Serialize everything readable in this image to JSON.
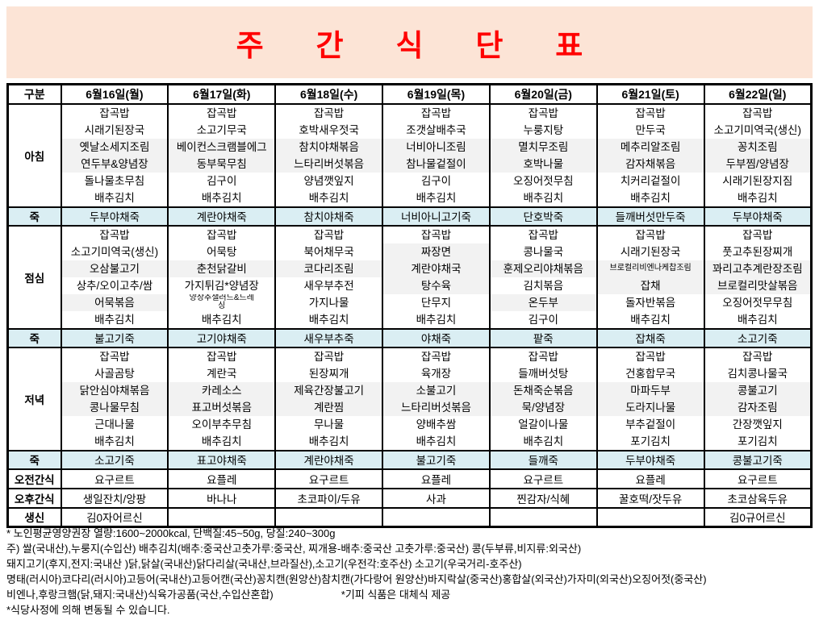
{
  "title": "주 간 식 단 표",
  "colors": {
    "title_red": "#FF0000",
    "banner_peach": "#FCE4D6",
    "porridge_blue": "#DAEEF3",
    "stripe_gray": "#F2F2F2",
    "border_black": "#000000"
  },
  "table": {
    "corner_label": "구분",
    "days": [
      "6월16일(월)",
      "6월17일(화)",
      "6월18일(수)",
      "6월19일(목)",
      "6월20일(금)",
      "6월21일(토)",
      "6월22일(일)"
    ],
    "sections": [
      {
        "key": "breakfast",
        "label": "아침",
        "type": "meal",
        "cells": [
          {
            "items": [
              "잡곡밥",
              "시래기된장국",
              "옛날소세지조림",
              "연두부&양념장",
              "돌나물초무침",
              "배추김치"
            ],
            "shaded": [
              2,
              3
            ]
          },
          {
            "items": [
              "잡곡밥",
              "소고기무국",
              "베이컨스크램블에그",
              "동부묵무침",
              "김구이",
              "배추김치"
            ],
            "shaded": [
              2,
              3
            ]
          },
          {
            "items": [
              "잡곡밥",
              "호박새우젓국",
              "참치야채볶음",
              "느타리버섯볶음",
              "양념깻잎지",
              "배추김치"
            ],
            "shaded": [
              2,
              3
            ]
          },
          {
            "items": [
              "잡곡밥",
              "조갯살배추국",
              "너비아니조림",
              "참나물겉절이",
              "김구이",
              "배추김치"
            ],
            "shaded": [
              2,
              3
            ]
          },
          {
            "items": [
              "잡곡밥",
              "누룽지탕",
              "멸치무조림",
              "호박나물",
              "오징어젓무침",
              "배추김치"
            ],
            "shaded": [
              2,
              3
            ]
          },
          {
            "items": [
              "잡곡밥",
              "만두국",
              "메추리알조림",
              "감자채볶음",
              "치커리겉절이",
              "배추김치"
            ],
            "shaded": [
              2,
              3
            ]
          },
          {
            "items": [
              "잡곡밥",
              "소고기미역국(생신)",
              "꽁치조림",
              "두부찜/양념장",
              "시래기된장지짐",
              "배추김치"
            ],
            "shaded": [
              2,
              3
            ]
          }
        ]
      },
      {
        "key": "porridge-morning",
        "label": "죽",
        "type": "porridge",
        "cells": [
          "두부야채죽",
          "계란야채죽",
          "참치야채죽",
          "너비아니고기죽",
          "단호박죽",
          "들깨버섯만두죽",
          "두부야채죽"
        ]
      },
      {
        "key": "lunch",
        "label": "점심",
        "type": "meal",
        "cells": [
          {
            "items": [
              "잡곡밥",
              "소고기미역국(생신)",
              "오삼불고기",
              "상추/오이고추/쌈",
              "어묵볶음",
              "배추김치"
            ],
            "shaded": [
              2,
              4
            ]
          },
          {
            "items": [
              "잡곡밥",
              "어묵탕",
              "춘천닭갈비",
              "가지튀김*양념장",
              "양상추샐러드&드레\n싱",
              "배추김치"
            ],
            "shaded": [
              2
            ],
            "small": [
              4
            ]
          },
          {
            "items": [
              "잡곡밥",
              "북어채무국",
              "코다리조림",
              "새우부추전",
              "가지나물",
              "배추김치"
            ],
            "shaded": [
              2
            ]
          },
          {
            "items": [
              "잡곡밥",
              "짜장면",
              "계란야채국",
              "탕수육",
              "단무지",
              "배추김치"
            ],
            "shaded": [
              1,
              2,
              3
            ]
          },
          {
            "items": [
              "잡곡밥",
              "콩나물국",
              "훈제오리야채볶음",
              "김치볶음",
              "온두부",
              "김구이"
            ],
            "shaded": [
              2,
              4
            ]
          },
          {
            "items": [
              "잡곡밥",
              "시래기된장국",
              "브로컬리비엔나케찹조림",
              "잡채",
              "돌자반볶음",
              "배추김치"
            ],
            "shaded": [
              2,
              3
            ],
            "small": [
              2
            ]
          },
          {
            "items": [
              "잡곡밥",
              "풋고추된장찌개",
              "꽈리고추계란장조림",
              "브로컬리맛살볶음",
              "오징어젓무무침",
              "배추김치"
            ],
            "shaded": [
              2,
              3
            ]
          }
        ]
      },
      {
        "key": "porridge-noon",
        "label": "죽",
        "type": "porridge",
        "cells": [
          "불고기죽",
          "고기야채죽",
          "새우부추죽",
          "야채죽",
          "팥죽",
          "잡채죽",
          "소고기죽"
        ]
      },
      {
        "key": "dinner",
        "label": "저녁",
        "type": "meal",
        "cells": [
          {
            "items": [
              "잡곡밥",
              "사골곰탕",
              "닭안심야채볶음",
              "콩나물무침",
              "근대나물",
              "배추김치"
            ],
            "shaded": [
              2,
              3
            ]
          },
          {
            "items": [
              "잡곡밥",
              "계란국",
              "카레소스",
              "표고버섯볶음",
              "오이부추무침",
              "배추김치"
            ],
            "shaded": [
              2,
              3
            ]
          },
          {
            "items": [
              "잡곡밥",
              "된장찌개",
              "제육간장불고기",
              "계란찜",
              "무나물",
              "배추김치"
            ],
            "shaded": [
              2,
              3
            ]
          },
          {
            "items": [
              "잡곡밥",
              "육개장",
              "소불고기",
              "느타리버섯볶음",
              "양배추쌈",
              "배추김치"
            ],
            "shaded": [
              2,
              3
            ]
          },
          {
            "items": [
              "잡곡밥",
              "들깨버섯탕",
              "돈채죽순볶음",
              "묵/양념장",
              "얼갈이나물",
              "배추김치"
            ],
            "shaded": [
              2,
              3
            ]
          },
          {
            "items": [
              "잡곡밥",
              "건홍합무국",
              "마파두부",
              "도라지나물",
              "부추겉절이",
              "포기김치"
            ],
            "shaded": [
              2,
              3
            ]
          },
          {
            "items": [
              "잡곡밥",
              "김치콩나물국",
              "콩불고기",
              "감자조림",
              "간장깻잎지",
              "포기김치"
            ],
            "shaded": [
              2,
              3
            ]
          }
        ]
      },
      {
        "key": "porridge-evening",
        "label": "죽",
        "type": "porridge",
        "cells": [
          "소고기죽",
          "표고야채죽",
          "계란야채죽",
          "불고기죽",
          "들깨죽",
          "두부야채죽",
          "콩불고기죽"
        ]
      },
      {
        "key": "morning-snack",
        "label": "오전간식",
        "type": "snack",
        "cells": [
          "요구르트",
          "요플레",
          "요구르트",
          "요플레",
          "요구르트",
          "요플레",
          "요구르트"
        ]
      },
      {
        "key": "afternoon-snack",
        "label": "오후간식",
        "type": "snack",
        "cells": [
          "생일잔치/앙팡",
          "바나나",
          "초코파이/두유",
          "사과",
          "찐감자/식혜",
          "꿀호떡/잣두유",
          "초코삼육두유"
        ]
      },
      {
        "key": "birthday",
        "label": "생신",
        "type": "snack",
        "cells": [
          "김0자어르신",
          "",
          "",
          "",
          "",
          "",
          "김0규어르신"
        ]
      }
    ]
  },
  "footnotes": [
    {
      "text": "* 노인평균영양권장 열량:1600~2000kcal, 단백질:45~50g, 당질:240~300g"
    },
    {
      "text": "주) 쌀(국내산),누룽지(수입산) 배추김치(배추:중국산고춧가루:중국산, 찌개용-배추:중국산 고춧가루:중국산) 콩(두부류,비지류:외국산)"
    },
    {
      "text": "돼지고기(후지,전지:국내산 )닭,닭살(국내산)닭다리살(국내산,브라질산),소고기(우전각:호주산) 소고기(우국거리-호주산)"
    },
    {
      "text": "명태(러시아)코다리(러시아)고등어(국내산)고등어캔(국산)꽁치캔(원양산)참치캔(가다랑어 원양산)바지락살(중국산)홍합살(외국산)가자미(외국산)오징어젓(중국산)"
    },
    {
      "text": "비엔나,후랑크햄(닭,돼지:국내산)식육가공품(국산,수입산혼합)",
      "right": "*기피 식품은 대체식 제공"
    },
    {
      "text": "*식당사정에 의해 변동될 수 있습니다."
    }
  ]
}
